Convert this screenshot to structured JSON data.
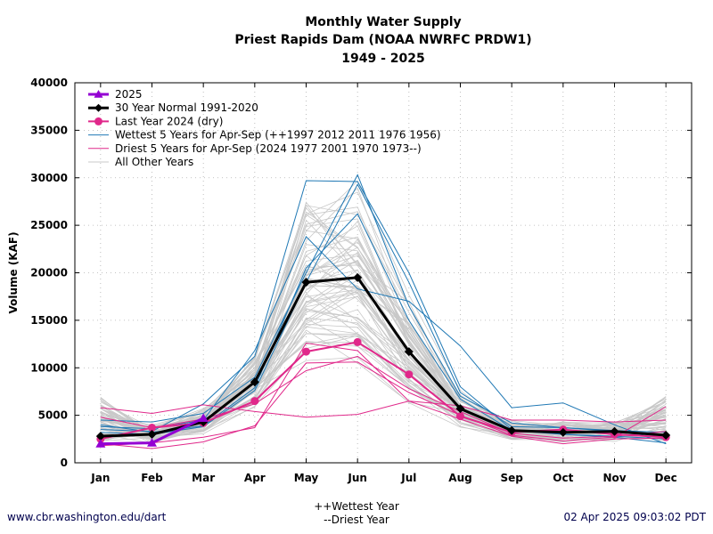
{
  "chart_data": {
    "type": "line",
    "title": [
      "Monthly Water Supply",
      "Priest Rapids Dam (NOAA NWRFC PRDW1)",
      "1949 - 2025"
    ],
    "xlabel": "",
    "ylabel": "Volume (KAF)",
    "categories": [
      "Jan",
      "Feb",
      "Mar",
      "Apr",
      "May",
      "Jun",
      "Jul",
      "Aug",
      "Sep",
      "Oct",
      "Nov",
      "Dec"
    ],
    "ylim": [
      0,
      40000
    ],
    "yticks": [
      "0",
      "5000",
      "10000",
      "15000",
      "20000",
      "25000",
      "30000",
      "35000",
      "40000"
    ],
    "grid": true,
    "legend_position": "top-left",
    "series": [
      {
        "name": "2025",
        "color": "#9400d3",
        "marker": "triangle",
        "values": [
          2000,
          2100,
          4700,
          null,
          null,
          null,
          null,
          null,
          null,
          null,
          null,
          null
        ]
      },
      {
        "name": "30 Year Normal 1991-2020",
        "color": "#000000",
        "marker": "diamond",
        "values": [
          2800,
          3000,
          4300,
          8500,
          19000,
          19500,
          11700,
          5700,
          3400,
          3200,
          3300,
          2900
        ]
      },
      {
        "name": "Last Year 2024 (dry)",
        "color": "#e0288a",
        "marker": "circle",
        "values": [
          2500,
          3700,
          4200,
          6500,
          11700,
          12700,
          9300,
          4900,
          3200,
          3500,
          3000,
          2700
        ]
      },
      {
        "name": "Wettest 5 Years for Apr-Sep (++1997 2012 2011 1976 1956)",
        "color": "#1f78b4",
        "marker": "none",
        "lines": [
          [
            3500,
            3300,
            6200,
            11200,
            29700,
            29600,
            20000,
            8000,
            3500,
            3000,
            2800,
            2500
          ],
          [
            4500,
            4300,
            5200,
            9000,
            20000,
            30300,
            16500,
            7000,
            4200,
            3700,
            3400,
            3200
          ],
          [
            3200,
            3000,
            3800,
            7600,
            19000,
            29300,
            19000,
            7400,
            3800,
            3700,
            3300,
            2800
          ],
          [
            4000,
            3200,
            3900,
            7900,
            20500,
            26200,
            15000,
            6700,
            3400,
            3000,
            2700,
            2100
          ],
          [
            3800,
            3600,
            4500,
            11800,
            23800,
            18300,
            17000,
            12300,
            5800,
            6300,
            4000,
            2000
          ]
        ]
      },
      {
        "name": "Driest 5 Years for Apr-Sep (2024 1977 2001 1970 1973--)",
        "color": "#e0288a",
        "marker": "none",
        "lines": [
          [
            5800,
            5200,
            6100,
            5400,
            4800,
            5100,
            6500,
            6000,
            4500,
            4500,
            4300,
            4500
          ],
          [
            2000,
            1500,
            2200,
            3900,
            10500,
            10600,
            7400,
            5000,
            2900,
            2300,
            2700,
            5900
          ],
          [
            1800,
            2100,
            2700,
            3700,
            12600,
            11800,
            6500,
            4600,
            2800,
            2000,
            2500,
            2600
          ],
          [
            4800,
            3700,
            4600,
            6200,
            9700,
            11200,
            7800,
            5400,
            3100,
            2600,
            2800,
            3300
          ]
        ]
      }
    ],
    "other_years_legend": "All Other Years",
    "other_years_color": "#c8c8c8"
  },
  "footer": {
    "left": "www.cbr.washington.edu/dart",
    "right": "02 Apr 2025 09:03:02 PDT",
    "note_line1": "++Wettest Year",
    "note_line2": "--Driest Year"
  }
}
